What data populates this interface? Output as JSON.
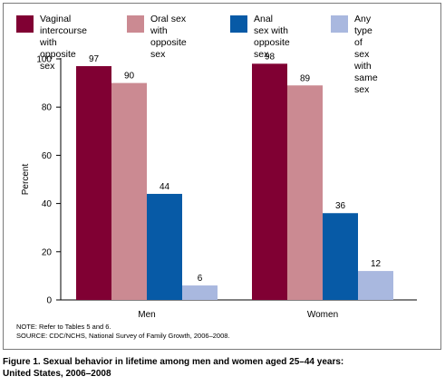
{
  "chart_data": {
    "type": "bar",
    "categories": [
      "Men",
      "Women"
    ],
    "series": [
      {
        "name": "Vaginal intercourse\nwith opposite sex",
        "values": [
          97,
          98
        ],
        "color": "#800033"
      },
      {
        "name": "Oral sex with\nopposite sex",
        "values": [
          90,
          89
        ],
        "color": "#cb8a92"
      },
      {
        "name": "Anal sex with\nopposite sex",
        "values": [
          44,
          36
        ],
        "color": "#075aa6"
      },
      {
        "name": "Any type of sex\nwith same sex",
        "values": [
          6,
          12
        ],
        "color": "#a9b8df"
      }
    ],
    "ylabel": "Percent",
    "xlabel": "",
    "ylim": [
      0,
      100
    ],
    "yticks": [
      0,
      20,
      40,
      60,
      80,
      100
    ],
    "grid": false,
    "legend": "top"
  },
  "notes": {
    "line1": "NOTE: Refer to Tables 5 and 6.",
    "line2": "SOURCE: CDC/NCHS, National Survey of Family Growth, 2006–2008."
  },
  "caption": "Figure 1. Sexual behavior in lifetime among men and women aged 25–44 years:\nUnited States, 2006–2008"
}
